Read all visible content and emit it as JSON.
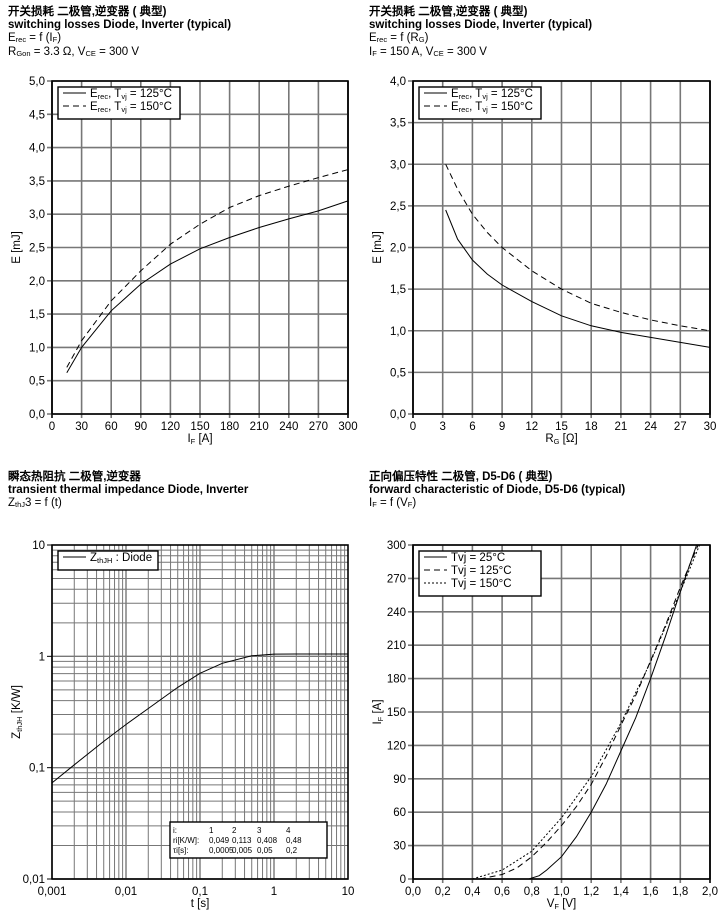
{
  "charts": [
    {
      "title_cn": "开关损耗 二极管,逆变器 ( 典型)",
      "title_en": "switching losses Diode, Inverter (typical)",
      "lines": [
        [
          {
            "t": "E"
          },
          {
            "t": "rec",
            "sub": true
          },
          {
            "t": " = f (I"
          },
          {
            "t": "F",
            "sub": true
          },
          {
            "t": ")"
          }
        ],
        [
          {
            "t": "R"
          },
          {
            "t": "Gon",
            "sub": true
          },
          {
            "t": " = 3.3 Ω, V"
          },
          {
            "t": "CE",
            "sub": true
          },
          {
            "t": " = 300 V"
          }
        ]
      ],
      "xlabel": [
        {
          "t": "I"
        },
        {
          "t": "F",
          "sub": true
        },
        {
          "t": " [A]"
        }
      ],
      "ylabel": [
        {
          "t": "E [mJ]"
        }
      ],
      "xticks": [
        "0",
        "30",
        "60",
        "90",
        "120",
        "150",
        "180",
        "210",
        "240",
        "270",
        "300"
      ],
      "yticks": [
        "0,0",
        "0,5",
        "1,0",
        "1,5",
        "2,0",
        "2,5",
        "3,0",
        "3,5",
        "4,0",
        "4,5",
        "5,0"
      ],
      "xlim": [
        0,
        300
      ],
      "ylim": [
        0,
        5
      ],
      "log": false,
      "legend": [
        {
          "label": [
            {
              "t": "E"
            },
            {
              "t": "rec",
              "sub": true
            },
            {
              "t": ", T"
            },
            {
              "t": "vj",
              "sub": true
            },
            {
              "t": " = 125°C"
            }
          ],
          "dash": "solid"
        },
        {
          "label": [
            {
              "t": "E"
            },
            {
              "t": "rec",
              "sub": true
            },
            {
              "t": ", T"
            },
            {
              "t": "vj",
              "sub": true
            },
            {
              "t": " = 150°C"
            }
          ],
          "dash": "dashed"
        }
      ],
      "series": [
        {
          "name": "Erec, Tvj = 125°C",
          "dash": "solid",
          "x": [
            15,
            30,
            60,
            90,
            120,
            150,
            180,
            210,
            240,
            270,
            300
          ],
          "y": [
            0.62,
            1.0,
            1.55,
            1.95,
            2.25,
            2.48,
            2.65,
            2.8,
            2.93,
            3.05,
            3.2
          ]
        },
        {
          "name": "Erec, Tvj = 150°C",
          "dash": "dashed",
          "x": [
            15,
            30,
            60,
            90,
            120,
            150,
            180,
            210,
            240,
            270,
            300
          ],
          "y": [
            0.7,
            1.1,
            1.7,
            2.15,
            2.55,
            2.85,
            3.1,
            3.28,
            3.42,
            3.55,
            3.67
          ]
        }
      ]
    },
    {
      "title_cn": "开关损耗 二极管,逆变器 ( 典型)",
      "title_en": "switching losses Diode, Inverter (typical)",
      "lines": [
        [
          {
            "t": "E"
          },
          {
            "t": "rec",
            "sub": true
          },
          {
            "t": " = f (R"
          },
          {
            "t": "G",
            "sub": true
          },
          {
            "t": ")"
          }
        ],
        [
          {
            "t": "I"
          },
          {
            "t": "F",
            "sub": true
          },
          {
            "t": " = 150 A, V"
          },
          {
            "t": "CE",
            "sub": true
          },
          {
            "t": " = 300 V"
          }
        ]
      ],
      "xlabel": [
        {
          "t": "R"
        },
        {
          "t": "G",
          "sub": true
        },
        {
          "t": " [Ω]"
        }
      ],
      "ylabel": [
        {
          "t": "E [mJ]"
        }
      ],
      "xticks": [
        "0",
        "3",
        "6",
        "9",
        "12",
        "15",
        "18",
        "21",
        "24",
        "27",
        "30"
      ],
      "yticks": [
        "0,0",
        "0,5",
        "1,0",
        "1,5",
        "2,0",
        "2,5",
        "3,0",
        "3,5",
        "4,0"
      ],
      "xlim": [
        0,
        30
      ],
      "ylim": [
        0,
        4
      ],
      "log": false,
      "legend": [
        {
          "label": [
            {
              "t": "E"
            },
            {
              "t": "rec",
              "sub": true
            },
            {
              "t": ", T"
            },
            {
              "t": "vj",
              "sub": true
            },
            {
              "t": " = 125°C"
            }
          ],
          "dash": "solid"
        },
        {
          "label": [
            {
              "t": "E"
            },
            {
              "t": "rec",
              "sub": true
            },
            {
              "t": ", T"
            },
            {
              "t": "vj",
              "sub": true
            },
            {
              "t": " = 150°C"
            }
          ],
          "dash": "dashed"
        }
      ],
      "series": [
        {
          "name": "Erec, Tvj = 125°C",
          "dash": "solid",
          "x": [
            3.3,
            4.5,
            6,
            7.5,
            9,
            12,
            15,
            18,
            21,
            24,
            27,
            30
          ],
          "y": [
            2.45,
            2.1,
            1.85,
            1.68,
            1.55,
            1.35,
            1.18,
            1.06,
            0.98,
            0.92,
            0.86,
            0.8
          ]
        },
        {
          "name": "Erec, Tvj = 150°C",
          "dash": "dashed",
          "x": [
            3.3,
            4.5,
            6,
            7.5,
            9,
            12,
            15,
            18,
            21,
            24,
            27,
            30
          ],
          "y": [
            3.0,
            2.7,
            2.4,
            2.18,
            2.0,
            1.72,
            1.5,
            1.33,
            1.22,
            1.13,
            1.06,
            1.0
          ]
        }
      ]
    },
    {
      "title_cn": "瞬态热阻抗 二极管,逆变器",
      "title_en": "transient thermal impedance Diode, Inverter",
      "lines": [
        [
          {
            "t": "Z"
          },
          {
            "t": "thJ",
            "sub": true
          },
          {
            "t": "3 = f (t)"
          }
        ]
      ],
      "xlabel": [
        {
          "t": "t [s]"
        }
      ],
      "ylabel": [
        {
          "t": "Z"
        },
        {
          "t": "thJH",
          "sub": true
        },
        {
          "t": " [K/W]"
        }
      ],
      "xticks": [
        "0,001",
        "0,01",
        "0,1",
        "1",
        "10"
      ],
      "yticks": [
        "0,01",
        "0,1",
        "1",
        "10"
      ],
      "xlim": [
        0.001,
        10
      ],
      "ylim": [
        0.01,
        10
      ],
      "log": true,
      "legend": [
        {
          "label": [
            {
              "t": "Z"
            },
            {
              "t": "thJH",
              "sub": true
            },
            {
              "t": " : Diode"
            }
          ],
          "dash": "solid"
        }
      ],
      "table": {
        "rows": [
          [
            "i:",
            "1",
            "2",
            "3",
            "4"
          ],
          [
            "ri[K/W]:",
            "0,049",
            "0,113",
            "0,408",
            "0,48"
          ],
          [
            "τi[s]:",
            "0,0005",
            "0,005",
            "0,05",
            "0,2"
          ]
        ]
      },
      "series": [
        {
          "name": "ZthJH : Diode",
          "dash": "solid",
          "x": [
            0.001,
            0.002,
            0.005,
            0.01,
            0.02,
            0.05,
            0.1,
            0.2,
            0.5,
            1,
            2,
            5,
            10
          ],
          "y": [
            0.073,
            0.106,
            0.172,
            0.244,
            0.34,
            0.526,
            0.704,
            0.866,
            1.011,
            1.047,
            1.05,
            1.05,
            1.05
          ]
        }
      ]
    },
    {
      "title_cn": "正向偏压特性 二极管, D5-D6 ( 典型)",
      "title_en": "forward characteristic of Diode, D5-D6 (typical)",
      "lines": [
        [
          {
            "t": "I"
          },
          {
            "t": "F",
            "sub": true
          },
          {
            "t": " = f (V"
          },
          {
            "t": "F",
            "sub": true
          },
          {
            "t": ")"
          }
        ]
      ],
      "xlabel": [
        {
          "t": "V"
        },
        {
          "t": "F",
          "sub": true
        },
        {
          "t": " [V]"
        }
      ],
      "ylabel": [
        {
          "t": "I"
        },
        {
          "t": "F",
          "sub": true
        },
        {
          "t": " [A]"
        }
      ],
      "xticks": [
        "0,0",
        "0,2",
        "0,4",
        "0,6",
        "0,8",
        "1,0",
        "1,2",
        "1,4",
        "1,6",
        "1,8",
        "2,0"
      ],
      "yticks": [
        "0",
        "30",
        "60",
        "90",
        "120",
        "150",
        "180",
        "210",
        "240",
        "270",
        "300"
      ],
      "xlim": [
        0,
        2
      ],
      "ylim": [
        0,
        300
      ],
      "log": false,
      "legend": [
        {
          "label": [
            {
              "t": "T"
            },
            {
              "t": "vj",
              "sub": true
            },
            {
              "t": " = 25°C"
            }
          ],
          "dash": "solid"
        },
        {
          "label": [
            {
              "t": "T"
            },
            {
              "t": "vj",
              "sub": true
            },
            {
              "t": " = 125°C"
            }
          ],
          "dash": "dashed"
        },
        {
          "label": [
            {
              "t": "T"
            },
            {
              "t": "vj",
              "sub": true
            },
            {
              "t": " = 150°C"
            }
          ],
          "dash": "dotted"
        }
      ],
      "series": [
        {
          "name": "Tvj = 25°C",
          "dash": "solid",
          "x": [
            0.78,
            0.85,
            0.9,
            1.0,
            1.1,
            1.2,
            1.3,
            1.4,
            1.5,
            1.6,
            1.7,
            1.8,
            1.91
          ],
          "y": [
            0,
            3,
            8,
            20,
            38,
            60,
            85,
            115,
            145,
            180,
            218,
            258,
            300
          ]
        },
        {
          "name": "Tvj = 125°C",
          "dash": "dashed",
          "x": [
            0.45,
            0.6,
            0.7,
            0.8,
            0.9,
            1.0,
            1.1,
            1.2,
            1.3,
            1.4,
            1.5,
            1.6,
            1.7,
            1.8,
            1.92
          ],
          "y": [
            0,
            4,
            10,
            20,
            33,
            48,
            65,
            85,
            110,
            138,
            165,
            196,
            228,
            262,
            300
          ]
        },
        {
          "name": "Tvj = 150°C",
          "dash": "dotted",
          "x": [
            0.4,
            0.6,
            0.8,
            1.0,
            1.2,
            1.4,
            1.6,
            1.8,
            1.93
          ],
          "y": [
            0,
            8,
            25,
            55,
            92,
            140,
            195,
            258,
            300
          ]
        }
      ]
    }
  ]
}
